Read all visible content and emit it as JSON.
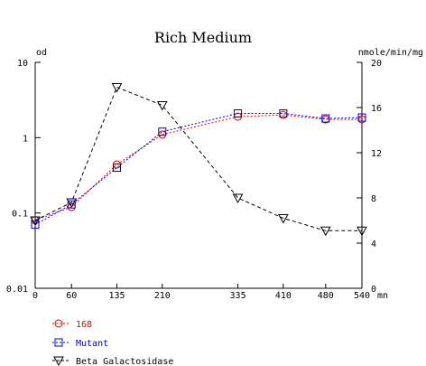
{
  "chart_data": {
    "type": "line",
    "title": "Rich Medium",
    "x_unit": "mn",
    "x_ticks": [
      "0",
      "60",
      "135",
      "210",
      "335",
      "410",
      "480",
      "540"
    ],
    "x": [
      0,
      60,
      135,
      210,
      335,
      410,
      480,
      540
    ],
    "xlim": [
      0,
      540
    ],
    "y_left": {
      "label": "od",
      "scale": "log",
      "ylim": [
        0.01,
        10
      ],
      "ticks": [
        "10",
        "1",
        "0.1",
        "0.01"
      ],
      "tick_values": [
        10,
        1,
        0.1,
        0.01
      ]
    },
    "y_right": {
      "label": "nmole/min/mg",
      "scale": "linear",
      "ylim": [
        0,
        20
      ],
      "ticks": [
        "20",
        "16",
        "12",
        "8",
        "4",
        "0"
      ],
      "tick_values": [
        20,
        16,
        12,
        8,
        4,
        0
      ]
    },
    "grid": false,
    "legend_position": "bottom-left",
    "series": [
      {
        "name": "168",
        "axis": "left",
        "marker": "circle",
        "line": "dotted",
        "color": "#e00000",
        "values": [
          0.08,
          0.12,
          0.44,
          1.1,
          1.9,
          2.0,
          1.75,
          1.75
        ]
      },
      {
        "name": "Mutant",
        "axis": "left",
        "marker": "square",
        "line": "dotted",
        "color": "#0000cc",
        "values": [
          0.07,
          0.13,
          0.4,
          1.2,
          2.1,
          2.1,
          1.8,
          1.85
        ]
      },
      {
        "name": "Beta Galactosidase",
        "axis": "right",
        "marker": "triangle-down",
        "line": "dashed",
        "color": "#000000",
        "values": [
          6,
          7.6,
          17.8,
          16.2,
          8,
          6.2,
          5.1,
          5.1
        ]
      }
    ]
  }
}
